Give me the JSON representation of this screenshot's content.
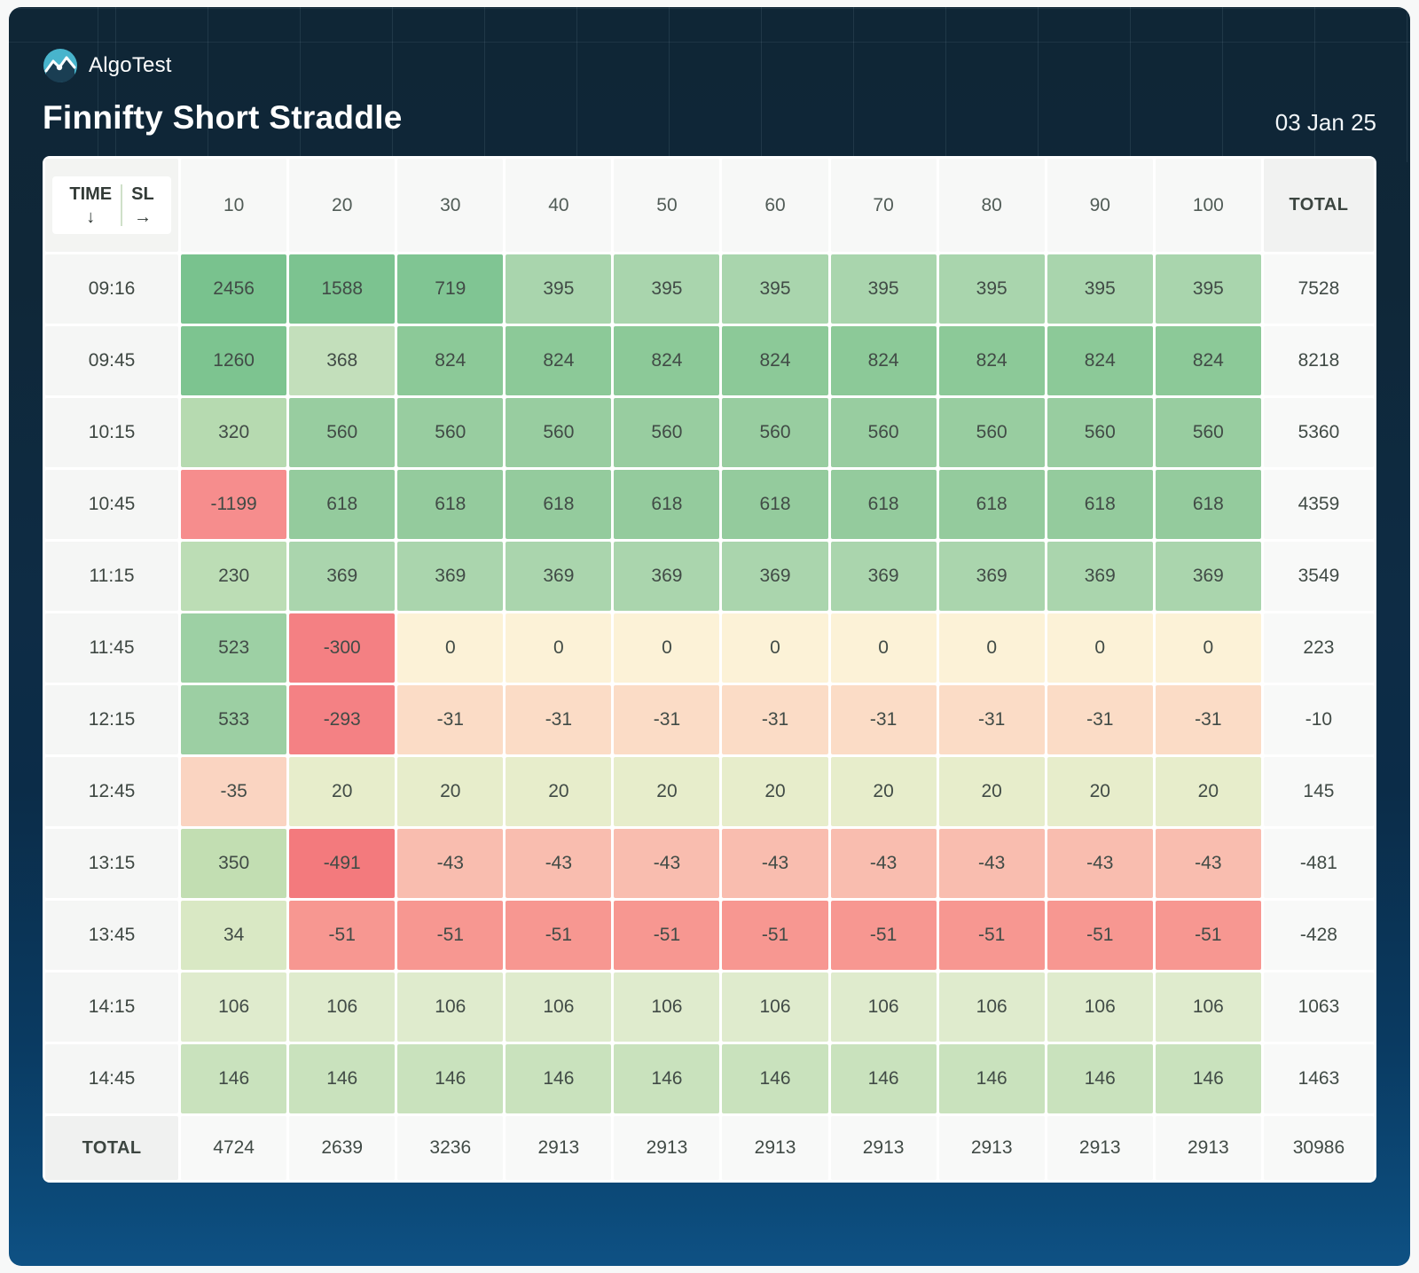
{
  "brand": {
    "name": "AlgoTest",
    "logo_color": "#48b4cc"
  },
  "header": {
    "title": "Finnifty Short Straddle",
    "date": "03 Jan 25"
  },
  "table": {
    "corner": {
      "row_label": "TIME",
      "row_arrow": "↓",
      "col_label": "SL",
      "col_arrow": "→"
    },
    "col_headers": [
      "10",
      "20",
      "30",
      "40",
      "50",
      "60",
      "70",
      "80",
      "90",
      "100"
    ],
    "total_header": "TOTAL",
    "footer_label": "TOTAL",
    "rows": [
      {
        "time": "09:16",
        "values": [
          "2456",
          "1588",
          "719",
          "395",
          "395",
          "395",
          "395",
          "395",
          "395",
          "395"
        ],
        "colors": [
          "#79c28e",
          "#7cc390",
          "#80c593",
          "#a9d5ad",
          "#a9d5ad",
          "#a9d5ad",
          "#a9d5ad",
          "#a9d5ad",
          "#a9d5ad",
          "#a9d5ad"
        ],
        "total": "7528"
      },
      {
        "time": "09:45",
        "values": [
          "1260",
          "368",
          "824",
          "824",
          "824",
          "824",
          "824",
          "824",
          "824",
          "824"
        ],
        "colors": [
          "#7dc490",
          "#c3dfbb",
          "#8cc998",
          "#8cc998",
          "#8cc998",
          "#8cc998",
          "#8cc998",
          "#8cc998",
          "#8cc998",
          "#8cc998"
        ],
        "total": "8218"
      },
      {
        "time": "10:15",
        "values": [
          "320",
          "560",
          "560",
          "560",
          "560",
          "560",
          "560",
          "560",
          "560",
          "560"
        ],
        "colors": [
          "#b6dab0",
          "#98cda0",
          "#98cda0",
          "#98cda0",
          "#98cda0",
          "#98cda0",
          "#98cda0",
          "#98cda0",
          "#98cda0",
          "#98cda0"
        ],
        "total": "5360"
      },
      {
        "time": "10:45",
        "values": [
          "-1199",
          "618",
          "618",
          "618",
          "618",
          "618",
          "618",
          "618",
          "618",
          "618"
        ],
        "colors": [
          "#f68d8d",
          "#94cb9d",
          "#94cb9d",
          "#94cb9d",
          "#94cb9d",
          "#94cb9d",
          "#94cb9d",
          "#94cb9d",
          "#94cb9d",
          "#94cb9d"
        ],
        "total": "4359"
      },
      {
        "time": "11:15",
        "values": [
          "230",
          "369",
          "369",
          "369",
          "369",
          "369",
          "369",
          "369",
          "369",
          "369"
        ],
        "colors": [
          "#bcddb5",
          "#aad5ad",
          "#aad5ad",
          "#aad5ad",
          "#aad5ad",
          "#aad5ad",
          "#aad5ad",
          "#aad5ad",
          "#aad5ad",
          "#aad5ad"
        ],
        "total": "3549"
      },
      {
        "time": "11:45",
        "values": [
          "523",
          "-300",
          "0",
          "0",
          "0",
          "0",
          "0",
          "0",
          "0",
          "0"
        ],
        "colors": [
          "#9dd0a4",
          "#f48083",
          "#fcf2d7",
          "#fcf2d7",
          "#fcf2d7",
          "#fcf2d7",
          "#fcf2d7",
          "#fcf2d7",
          "#fcf2d7",
          "#fcf2d7"
        ],
        "total": "223"
      },
      {
        "time": "12:15",
        "values": [
          "533",
          "-293",
          "-31",
          "-31",
          "-31",
          "-31",
          "-31",
          "-31",
          "-31",
          "-31"
        ],
        "colors": [
          "#9ccfa3",
          "#f48184",
          "#fbdcc6",
          "#fbdcc6",
          "#fbdcc6",
          "#fbdcc6",
          "#fbdcc6",
          "#fbdcc6",
          "#fbdcc6",
          "#fbdcc6"
        ],
        "total": "-10"
      },
      {
        "time": "12:45",
        "values": [
          "-35",
          "20",
          "20",
          "20",
          "20",
          "20",
          "20",
          "20",
          "20",
          "20"
        ],
        "colors": [
          "#fad4c1",
          "#e7edcb",
          "#e7edcb",
          "#e7edcb",
          "#e7edcb",
          "#e7edcb",
          "#e7edcb",
          "#e7edcb",
          "#e7edcb",
          "#e7edcb"
        ],
        "total": "145"
      },
      {
        "time": "13:15",
        "values": [
          "350",
          "-491",
          "-43",
          "-43",
          "-43",
          "-43",
          "-43",
          "-43",
          "-43",
          "-43"
        ],
        "colors": [
          "#c2deb2",
          "#f37a7d",
          "#f9bdaf",
          "#f9bdaf",
          "#f9bdaf",
          "#f9bdaf",
          "#f9bdaf",
          "#f9bdaf",
          "#f9bdaf",
          "#f9bdaf"
        ],
        "total": "-481"
      },
      {
        "time": "13:45",
        "values": [
          "34",
          "-51",
          "-51",
          "-51",
          "-51",
          "-51",
          "-51",
          "-51",
          "-51",
          "-51"
        ],
        "colors": [
          "#d9e8c4",
          "#f79791",
          "#f79791",
          "#f79791",
          "#f79791",
          "#f79791",
          "#f79791",
          "#f79791",
          "#f79791",
          "#f79791"
        ],
        "total": "-428"
      },
      {
        "time": "14:15",
        "values": [
          "106",
          "106",
          "106",
          "106",
          "106",
          "106",
          "106",
          "106",
          "106",
          "106"
        ],
        "colors": [
          "#dfebcd",
          "#dfebcd",
          "#dfebcd",
          "#dfebcd",
          "#dfebcd",
          "#dfebcd",
          "#dfebcd",
          "#dfebcd",
          "#dfebcd",
          "#dfebcd"
        ],
        "total": "1063"
      },
      {
        "time": "14:45",
        "values": [
          "146",
          "146",
          "146",
          "146",
          "146",
          "146",
          "146",
          "146",
          "146",
          "146"
        ],
        "colors": [
          "#c9e2bd",
          "#c9e2bd",
          "#c9e2bd",
          "#c9e2bd",
          "#c9e2bd",
          "#c9e2bd",
          "#c9e2bd",
          "#c9e2bd",
          "#c9e2bd",
          "#c9e2bd"
        ],
        "total": "1463"
      }
    ],
    "col_totals": [
      "4724",
      "2639",
      "3236",
      "2913",
      "2913",
      "2913",
      "2913",
      "2913",
      "2913",
      "2913"
    ],
    "grand_total": "30986"
  },
  "chart_data": {
    "type": "heatmap",
    "title": "Finnifty Short Straddle",
    "subtitle": "03 Jan 25",
    "xlabel": "SL",
    "ylabel": "TIME",
    "x": [
      10,
      20,
      30,
      40,
      50,
      60,
      70,
      80,
      90,
      100
    ],
    "y": [
      "09:16",
      "09:45",
      "10:15",
      "10:45",
      "11:15",
      "11:45",
      "12:15",
      "12:45",
      "13:15",
      "13:45",
      "14:15",
      "14:45"
    ],
    "values": [
      [
        2456,
        1588,
        719,
        395,
        395,
        395,
        395,
        395,
        395,
        395
      ],
      [
        1260,
        368,
        824,
        824,
        824,
        824,
        824,
        824,
        824,
        824
      ],
      [
        320,
        560,
        560,
        560,
        560,
        560,
        560,
        560,
        560,
        560
      ],
      [
        -1199,
        618,
        618,
        618,
        618,
        618,
        618,
        618,
        618,
        618
      ],
      [
        230,
        369,
        369,
        369,
        369,
        369,
        369,
        369,
        369,
        369
      ],
      [
        523,
        -300,
        0,
        0,
        0,
        0,
        0,
        0,
        0,
        0
      ],
      [
        533,
        -293,
        -31,
        -31,
        -31,
        -31,
        -31,
        -31,
        -31,
        -31
      ],
      [
        -35,
        20,
        20,
        20,
        20,
        20,
        20,
        20,
        20,
        20
      ],
      [
        350,
        -491,
        -43,
        -43,
        -43,
        -43,
        -43,
        -43,
        -43,
        -43
      ],
      [
        34,
        -51,
        -51,
        -51,
        -51,
        -51,
        -51,
        -51,
        -51,
        -51
      ],
      [
        106,
        106,
        106,
        106,
        106,
        106,
        106,
        106,
        106,
        106
      ],
      [
        146,
        146,
        146,
        146,
        146,
        146,
        146,
        146,
        146,
        146
      ]
    ],
    "row_totals": [
      7528,
      8218,
      5360,
      4359,
      3549,
      223,
      -10,
      145,
      -481,
      -428,
      1063,
      1463
    ],
    "col_totals": [
      4724,
      2639,
      3236,
      2913,
      2913,
      2913,
      2913,
      2913,
      2913,
      2913
    ],
    "grand_total": 30986,
    "colorscale": "red-yellow-green (negative→positive)",
    "legend": "none"
  }
}
